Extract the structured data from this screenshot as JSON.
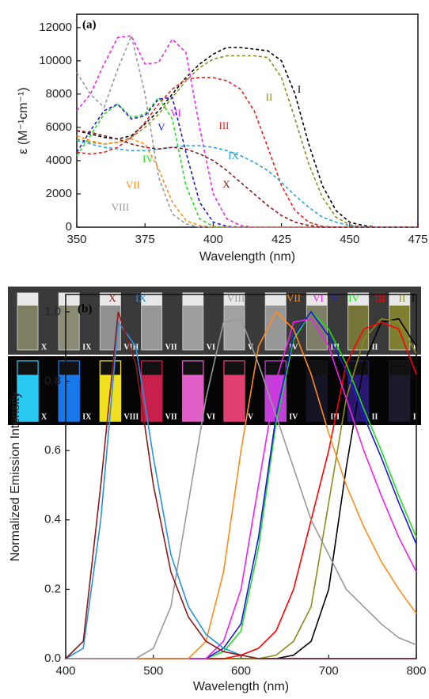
{
  "chart_data": [
    {
      "type": "line",
      "title": "(a)",
      "line_style": "dashed",
      "y_label": "ε (M⁻¹cm⁻¹)",
      "x_label": "Wavelength (nm)",
      "x": [
        350,
        355,
        360,
        365,
        370,
        375,
        380,
        385,
        390,
        395,
        400,
        405,
        410,
        415,
        420,
        425,
        430,
        435,
        440,
        445,
        450,
        455,
        460,
        465,
        470,
        475
      ],
      "xlim": [
        350,
        475
      ],
      "xticks": [
        350,
        375,
        400,
        425,
        450,
        475
      ],
      "ylim": [
        0,
        12800
      ],
      "yticks": [
        0,
        2000,
        4000,
        6000,
        8000,
        10000,
        12000
      ],
      "series": [
        {
          "name": "I",
          "color": "#000000",
          "values": [
            5800,
            5600,
            5400,
            5300,
            5500,
            6200,
            7000,
            8000,
            9000,
            9800,
            10400,
            10800,
            10800,
            10700,
            10600,
            10000,
            8000,
            5000,
            2500,
            1000,
            300,
            100,
            0,
            0,
            0,
            0
          ]
        },
        {
          "name": "II",
          "color": "#8b8b1f",
          "values": [
            5300,
            5100,
            5000,
            5100,
            5400,
            6000,
            6800,
            7800,
            8800,
            9600,
            10100,
            10300,
            10300,
            10300,
            10200,
            9000,
            6500,
            3800,
            1800,
            600,
            150,
            0,
            0,
            0,
            0,
            0
          ]
        },
        {
          "name": "III",
          "color": "#e8201c",
          "values": [
            4500,
            4400,
            4500,
            4800,
            5400,
            6300,
            7400,
            8300,
            8900,
            9000,
            9000,
            8800,
            8300,
            7000,
            4800,
            2500,
            1000,
            300,
            50,
            0,
            0,
            0,
            0,
            0,
            0,
            0
          ]
        },
        {
          "name": "IV",
          "color": "#22dd22",
          "values": [
            4300,
            5500,
            6800,
            7400,
            6600,
            6800,
            7800,
            6500,
            2500,
            500,
            50,
            0,
            0,
            0,
            0,
            0,
            0,
            0,
            0,
            0,
            0,
            0,
            0,
            0,
            0,
            0
          ]
        },
        {
          "name": "V",
          "color": "#1a1ad8",
          "values": [
            4500,
            5800,
            7000,
            7400,
            6500,
            6700,
            7700,
            7800,
            4500,
            1500,
            300,
            50,
            0,
            0,
            0,
            0,
            0,
            0,
            0,
            0,
            0,
            0,
            0,
            0,
            0,
            0
          ]
        },
        {
          "name": "VI",
          "color": "#ee22ee",
          "values": [
            7000,
            8000,
            9800,
            11400,
            11500,
            9800,
            9900,
            11300,
            10500,
            6000,
            2000,
            500,
            100,
            0,
            0,
            0,
            0,
            0,
            0,
            0,
            0,
            0,
            0,
            0,
            0,
            0
          ]
        },
        {
          "name": "VII",
          "color": "#ff8c1a",
          "values": [
            5500,
            5200,
            5000,
            5100,
            5300,
            5000,
            3500,
            1500,
            400,
            100,
            0,
            0,
            0,
            0,
            0,
            0,
            0,
            0,
            0,
            0,
            0,
            0,
            0,
            0,
            0,
            0
          ]
        },
        {
          "name": "VIII",
          "color": "#999999",
          "values": [
            9300,
            8000,
            7200,
            9500,
            11500,
            8000,
            3000,
            800,
            200,
            0,
            0,
            0,
            0,
            0,
            0,
            0,
            0,
            0,
            0,
            0,
            0,
            0,
            0,
            0,
            0,
            0
          ]
        },
        {
          "name": "IX",
          "color": "#2aa0e0",
          "values": [
            5200,
            5000,
            4800,
            4700,
            4600,
            4600,
            4700,
            4800,
            4900,
            4900,
            4800,
            4600,
            4300,
            3900,
            3400,
            2700,
            1900,
            1200,
            600,
            300,
            100,
            0,
            0,
            0,
            0,
            0
          ]
        },
        {
          "name": "X",
          "color": "#8b1a1a",
          "values": [
            5800,
            5700,
            5500,
            5300,
            5000,
            4800,
            4700,
            4800,
            4700,
            4400,
            4000,
            3400,
            2700,
            2000,
            1300,
            700,
            300,
            100,
            0,
            0,
            0,
            0,
            0,
            0,
            0,
            0
          ]
        }
      ]
    },
    {
      "type": "line",
      "title": "(b)",
      "line_style": "solid",
      "y_label": "Normalized Emission Intensity",
      "x_label": "Wavelength (nm)",
      "x": [
        400,
        420,
        440,
        460,
        480,
        500,
        520,
        540,
        560,
        580,
        600,
        620,
        640,
        660,
        680,
        700,
        720,
        740,
        760,
        780,
        800
      ],
      "xlim": [
        400,
        800
      ],
      "xticks": [
        400,
        500,
        600,
        700,
        800
      ],
      "ylim": [
        0,
        1.05
      ],
      "yticks": [
        {
          "value": 0,
          "label": "0.0"
        },
        {
          "value": 0.2,
          "label": "0.2"
        },
        {
          "value": 0.4,
          "label": "0.4"
        },
        {
          "value": 0.6,
          "label": "0.6"
        },
        {
          "value": 0.8,
          "label": "0.8"
        },
        {
          "value": 1,
          "label": "1.0"
        }
      ],
      "series": [
        {
          "name": "I",
          "color": "#000000",
          "values": [
            0,
            0,
            0,
            0,
            0,
            0,
            0,
            0,
            0,
            0,
            0,
            0,
            0,
            0.01,
            0.05,
            0.2,
            0.55,
            0.85,
            0.97,
            0.98,
            0.9
          ]
        },
        {
          "name": "II",
          "color": "#8b8b1f",
          "values": [
            0,
            0,
            0,
            0,
            0,
            0,
            0,
            0,
            0,
            0,
            0,
            0,
            0.01,
            0.05,
            0.15,
            0.45,
            0.75,
            0.92,
            0.98,
            0.97,
            0.88
          ]
        },
        {
          "name": "III",
          "color": "#ff0000",
          "values": [
            0,
            0,
            0,
            0,
            0,
            0,
            0,
            0,
            0,
            0,
            0.01,
            0.03,
            0.08,
            0.2,
            0.4,
            0.6,
            0.85,
            0.95,
            0.97,
            0.95,
            0.82
          ]
        },
        {
          "name": "IV",
          "color": "#22dd22",
          "values": [
            0,
            0,
            0,
            0,
            0,
            0,
            0,
            0,
            0,
            0.02,
            0.08,
            0.32,
            0.68,
            0.92,
            1.0,
            0.95,
            0.85,
            0.72,
            0.6,
            0.47,
            0.35
          ]
        },
        {
          "name": "V",
          "color": "#1a1ad8",
          "values": [
            0,
            0,
            0,
            0,
            0,
            0,
            0,
            0,
            0,
            0.03,
            0.1,
            0.35,
            0.7,
            0.93,
            1.0,
            0.93,
            0.83,
            0.7,
            0.58,
            0.45,
            0.33
          ]
        },
        {
          "name": "VI",
          "color": "#ee22ee",
          "values": [
            0,
            0,
            0,
            0,
            0,
            0,
            0,
            0,
            0,
            0.05,
            0.2,
            0.5,
            0.8,
            0.97,
            0.98,
            0.9,
            0.75,
            0.6,
            0.47,
            0.35,
            0.25
          ]
        },
        {
          "name": "VII",
          "color": "#ff8c1a",
          "values": [
            0,
            0,
            0,
            0,
            0,
            0,
            0,
            0,
            0.05,
            0.25,
            0.6,
            0.9,
            1.0,
            0.95,
            0.82,
            0.65,
            0.5,
            0.38,
            0.28,
            0.2,
            0.13
          ]
        },
        {
          "name": "VIII",
          "color": "#999999",
          "values": [
            0,
            0,
            0,
            0,
            0,
            0.03,
            0.15,
            0.45,
            0.75,
            0.97,
            0.98,
            0.85,
            0.7,
            0.55,
            0.4,
            0.3,
            0.2,
            0.15,
            0.1,
            0.06,
            0.04
          ]
        },
        {
          "name": "IX",
          "color": "#2a90e0",
          "values": [
            0,
            0.03,
            0.4,
            0.97,
            0.9,
            0.58,
            0.3,
            0.15,
            0.07,
            0.03,
            0.01,
            0,
            0,
            0,
            0,
            0,
            0,
            0,
            0,
            0,
            0
          ]
        },
        {
          "name": "X",
          "color": "#8b1a1a",
          "values": [
            0,
            0.05,
            0.5,
            1.0,
            0.85,
            0.5,
            0.25,
            0.12,
            0.05,
            0.02,
            0.01,
            0,
            0,
            0,
            0,
            0,
            0,
            0,
            0,
            0,
            0
          ]
        }
      ]
    }
  ],
  "photo": {
    "top_labels": [
      "X",
      "IX",
      "VIII",
      "VII",
      "VI",
      "V",
      "IV",
      "III",
      "II",
      "I"
    ],
    "bottom_labels": [
      "X",
      "IX",
      "VIII",
      "VII",
      "VI",
      "V",
      "IV",
      "III",
      "II",
      "I"
    ]
  }
}
